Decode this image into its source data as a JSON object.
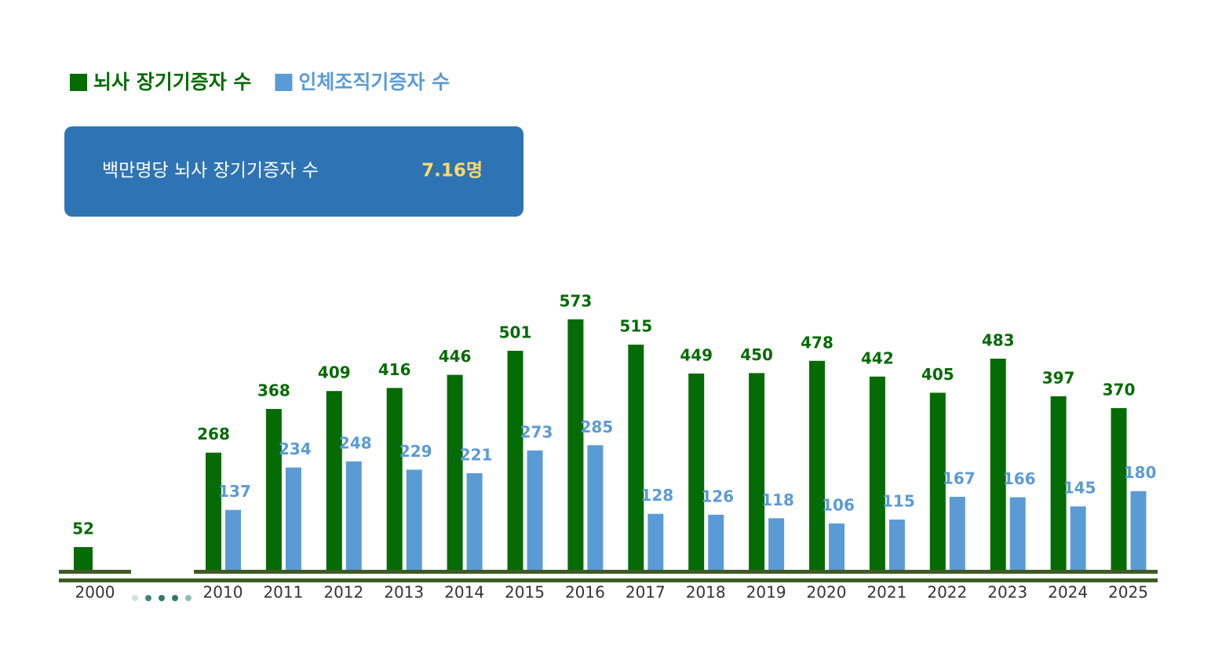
{
  "chart_data": {
    "type": "bar",
    "summary": {
      "label": "백만명당 뇌사 장기기증자 수",
      "value": "7.16명"
    },
    "categories": [
      "2000",
      "2010",
      "2011",
      "2012",
      "2013",
      "2014",
      "2015",
      "2016",
      "2017",
      "2018",
      "2019",
      "2020",
      "2021",
      "2022",
      "2023",
      "2024",
      "2025"
    ],
    "series": [
      {
        "name": "뇌사 장기기증자 수",
        "color": "#056b05",
        "values": [
          52,
          268,
          368,
          409,
          416,
          446,
          501,
          573,
          515,
          449,
          450,
          478,
          442,
          405,
          483,
          397,
          370
        ]
      },
      {
        "name": "인체조직기증자 수",
        "color": "#5b9bd5",
        "values": [
          null,
          137,
          234,
          248,
          229,
          221,
          273,
          285,
          128,
          126,
          118,
          106,
          115,
          167,
          166,
          145,
          180
        ]
      }
    ],
    "legend": "top-left"
  }
}
